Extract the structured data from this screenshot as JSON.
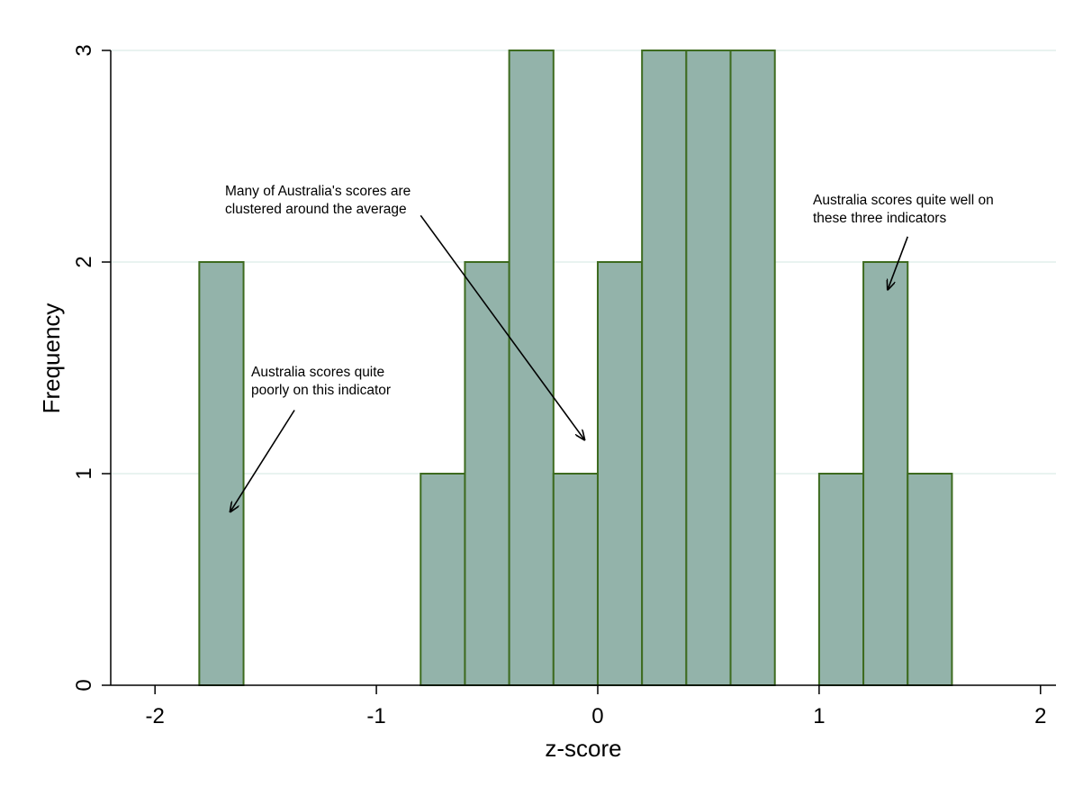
{
  "chart_data": {
    "type": "bar",
    "title": "",
    "xlabel": "z-score",
    "ylabel": "Frequency",
    "bin_width": 0.2,
    "bins": [
      {
        "start": -1.8,
        "end": -1.6,
        "count": 2
      },
      {
        "start": -0.8,
        "end": -0.6,
        "count": 1
      },
      {
        "start": -0.6,
        "end": -0.4,
        "count": 2
      },
      {
        "start": -0.4,
        "end": -0.2,
        "count": 3
      },
      {
        "start": -0.2,
        "end": 0.0,
        "count": 1
      },
      {
        "start": 0.0,
        "end": 0.2,
        "count": 2
      },
      {
        "start": 0.2,
        "end": 0.4,
        "count": 3
      },
      {
        "start": 0.4,
        "end": 0.6,
        "count": 3
      },
      {
        "start": 0.6,
        "end": 0.8,
        "count": 3
      },
      {
        "start": 1.0,
        "end": 1.2,
        "count": 1
      },
      {
        "start": 1.2,
        "end": 1.4,
        "count": 2
      },
      {
        "start": 1.4,
        "end": 1.6,
        "count": 1
      }
    ],
    "xlim": [
      -2.2,
      2.07
    ],
    "ylim": [
      0,
      3.0
    ],
    "x_ticks": [
      {
        "value": -2,
        "label": "-2"
      },
      {
        "value": -1,
        "label": "-1"
      },
      {
        "value": 0,
        "label": "0"
      },
      {
        "value": 1,
        "label": "1"
      },
      {
        "value": 2,
        "label": "2"
      }
    ],
    "y_ticks": [
      {
        "value": 0,
        "label": "0"
      },
      {
        "value": 1,
        "label": "1"
      },
      {
        "value": 2,
        "label": "2"
      },
      {
        "value": 3,
        "label": "3"
      }
    ],
    "grid": "horizontal",
    "colors": {
      "bar_fill": "#93b3aa",
      "bar_edge": "#3d6b1f",
      "grid": "#dcece6",
      "axis": "#000000"
    },
    "annotations": [
      {
        "lines": [
          "Australia scores quite",
          "poorly on this indicator"
        ],
        "arrow_tip": {
          "x": -1.66,
          "y": 0.82
        },
        "arrow_tail": {
          "x": -1.37,
          "y": 1.3
        }
      },
      {
        "lines": [
          "Many of Australia's scores are",
          "clustered around the average"
        ],
        "arrow_tip": {
          "x": -0.06,
          "y": 1.16
        },
        "arrow_tail": {
          "x": -0.8,
          "y": 2.22
        }
      },
      {
        "lines": [
          "Australia scores quite well on",
          "these three indicators"
        ],
        "arrow_tip": {
          "x": 1.31,
          "y": 1.87
        },
        "arrow_tail": {
          "x": 1.4,
          "y": 2.12
        }
      }
    ]
  }
}
